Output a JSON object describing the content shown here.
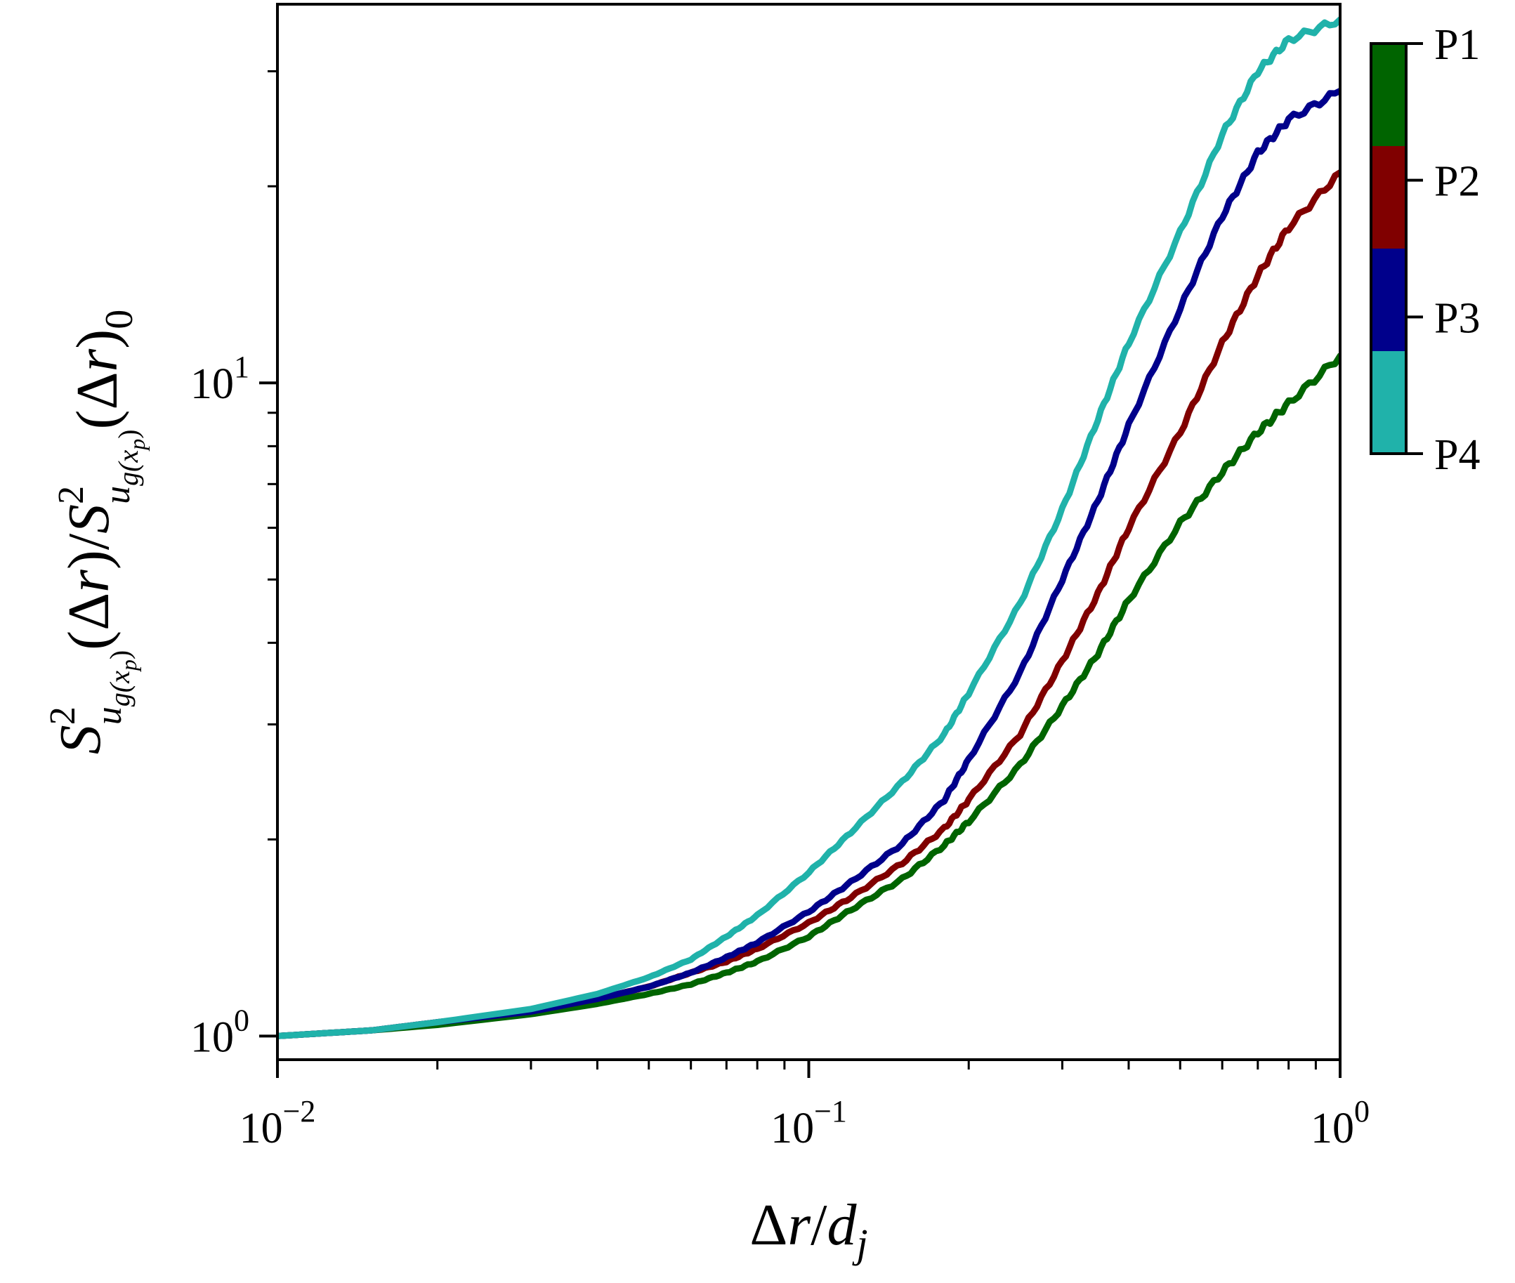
{
  "chart_data": {
    "type": "line",
    "xscale": "log",
    "yscale": "log",
    "xlim": [
      0.01,
      1.0
    ],
    "ylim": [
      0.92,
      38
    ],
    "xlabel": "Δr/d_j",
    "ylabel": "S²_{u_g(x_p)}(Δr)/S²_{u_g(x_p)}(Δr)_0",
    "x_ticks": [
      {
        "value": 0.01,
        "base": "10",
        "exp": "−2"
      },
      {
        "value": 0.1,
        "base": "10",
        "exp": "−1"
      },
      {
        "value": 1.0,
        "base": "10",
        "exp": "0"
      }
    ],
    "y_ticks": [
      {
        "value": 1,
        "base": "10",
        "exp": "0"
      },
      {
        "value": 10,
        "base": "10",
        "exp": "1"
      }
    ],
    "grid": false,
    "series": [
      {
        "name": "P1",
        "color": "#006400",
        "x": [
          0.01,
          0.015,
          0.02,
          0.03,
          0.04,
          0.05,
          0.06,
          0.07,
          0.08,
          0.1,
          0.12,
          0.15,
          0.18,
          0.2,
          0.25,
          0.3,
          0.35,
          0.4,
          0.5,
          0.6,
          0.7,
          0.8,
          1.0
        ],
        "y": [
          1.0,
          1.02,
          1.04,
          1.08,
          1.12,
          1.16,
          1.2,
          1.25,
          1.3,
          1.42,
          1.56,
          1.74,
          1.96,
          2.13,
          2.6,
          3.2,
          3.85,
          4.65,
          6.1,
          7.3,
          8.4,
          9.3,
          11.0
        ]
      },
      {
        "name": "P2",
        "color": "#800000",
        "x": [
          0.01,
          0.015,
          0.02,
          0.03,
          0.04,
          0.05,
          0.06,
          0.07,
          0.08,
          0.1,
          0.12,
          0.15,
          0.18,
          0.2,
          0.25,
          0.3,
          0.35,
          0.4,
          0.5,
          0.6,
          0.7,
          0.8,
          1.0
        ],
        "y": [
          1.0,
          1.02,
          1.05,
          1.09,
          1.14,
          1.19,
          1.25,
          1.3,
          1.36,
          1.49,
          1.63,
          1.84,
          2.08,
          2.3,
          2.9,
          3.75,
          4.75,
          6.0,
          8.4,
          11.5,
          14.6,
          17.3,
          21.0
        ]
      },
      {
        "name": "P3",
        "color": "#00008B",
        "x": [
          0.01,
          0.015,
          0.02,
          0.03,
          0.04,
          0.05,
          0.06,
          0.07,
          0.08,
          0.1,
          0.12,
          0.15,
          0.18,
          0.2,
          0.25,
          0.3,
          0.35,
          0.4,
          0.5,
          0.6,
          0.7,
          0.8,
          1.0
        ],
        "y": [
          1.0,
          1.02,
          1.05,
          1.09,
          1.14,
          1.19,
          1.25,
          1.32,
          1.39,
          1.55,
          1.72,
          1.97,
          2.3,
          2.65,
          3.6,
          5.0,
          6.6,
          8.6,
          13.0,
          18.0,
          22.5,
          25.3,
          28.0
        ]
      },
      {
        "name": "P4",
        "color": "#20B2AA",
        "x": [
          0.01,
          0.015,
          0.02,
          0.03,
          0.04,
          0.05,
          0.06,
          0.07,
          0.08,
          0.1,
          0.12,
          0.15,
          0.18,
          0.2,
          0.25,
          0.3,
          0.35,
          0.4,
          0.5,
          0.6,
          0.7,
          0.8,
          1.0
        ],
        "y": [
          1.0,
          1.02,
          1.05,
          1.1,
          1.16,
          1.23,
          1.31,
          1.42,
          1.53,
          1.78,
          2.05,
          2.45,
          2.9,
          3.35,
          4.6,
          6.4,
          8.8,
          11.5,
          17.0,
          24.0,
          30.0,
          33.5,
          36.0
        ]
      }
    ],
    "colorbar": {
      "labels": [
        "P1",
        "P2",
        "P3",
        "P4"
      ],
      "colors": [
        "#006400",
        "#800000",
        "#00008B",
        "#20B2AA"
      ],
      "placement": "right"
    }
  }
}
